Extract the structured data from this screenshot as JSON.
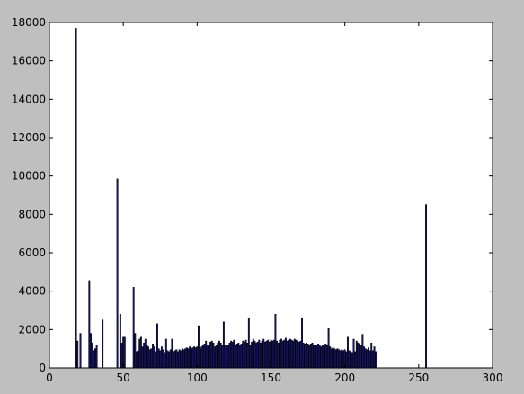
{
  "chart_data": {
    "type": "bar",
    "title": "",
    "xlabel": "",
    "ylabel": "",
    "xlim": [
      0,
      300
    ],
    "ylim": [
      0,
      18000
    ],
    "xticks": [
      0,
      50,
      100,
      150,
      200,
      250,
      300
    ],
    "yticks": [
      0,
      2000,
      4000,
      6000,
      8000,
      10000,
      12000,
      14000,
      16000,
      18000
    ],
    "grid": false,
    "legend": "none",
    "bar_width": 0.8,
    "colors": {
      "bar_fill": "#1a1a8c",
      "bar_edge": "#000000",
      "axes_bg": "#ffffff",
      "figure_bg": "#bfbfbf"
    },
    "bars": [
      [
        18,
        17700
      ],
      [
        19,
        1400
      ],
      [
        21,
        1800
      ],
      [
        27,
        4550
      ],
      [
        28,
        1800
      ],
      [
        29,
        1300
      ],
      [
        30,
        900
      ],
      [
        31,
        1000
      ],
      [
        32,
        1200
      ],
      [
        36,
        2500
      ],
      [
        46,
        9850
      ],
      [
        48,
        2800
      ],
      [
        49,
        1300
      ],
      [
        50,
        1600
      ],
      [
        51,
        1600
      ],
      [
        57,
        4200
      ],
      [
        58,
        1800
      ],
      [
        59,
        850
      ],
      [
        60,
        900
      ],
      [
        61,
        1500
      ],
      [
        62,
        1600
      ],
      [
        63,
        1100
      ],
      [
        64,
        1300
      ],
      [
        65,
        1500
      ],
      [
        66,
        1200
      ],
      [
        67,
        1100
      ],
      [
        68,
        950
      ],
      [
        69,
        1000
      ],
      [
        70,
        1250
      ],
      [
        71,
        1100
      ],
      [
        72,
        850
      ],
      [
        73,
        2300
      ],
      [
        74,
        1000
      ],
      [
        75,
        900
      ],
      [
        76,
        1100
      ],
      [
        77,
        950
      ],
      [
        78,
        800
      ],
      [
        79,
        1500
      ],
      [
        80,
        900
      ],
      [
        81,
        850
      ],
      [
        82,
        950
      ],
      [
        83,
        1500
      ],
      [
        84,
        850
      ],
      [
        85,
        900
      ],
      [
        86,
        950
      ],
      [
        87,
        850
      ],
      [
        88,
        950
      ],
      [
        89,
        900
      ],
      [
        90,
        1000
      ],
      [
        91,
        950
      ],
      [
        92,
        1000
      ],
      [
        93,
        1050
      ],
      [
        94,
        1000
      ],
      [
        95,
        1100
      ],
      [
        96,
        1000
      ],
      [
        97,
        1050
      ],
      [
        98,
        1100
      ],
      [
        99,
        1050
      ],
      [
        100,
        1100
      ],
      [
        101,
        2200
      ],
      [
        102,
        1000
      ],
      [
        103,
        1100
      ],
      [
        104,
        1200
      ],
      [
        105,
        1250
      ],
      [
        106,
        1400
      ],
      [
        107,
        1150
      ],
      [
        108,
        1200
      ],
      [
        109,
        1350
      ],
      [
        110,
        1400
      ],
      [
        111,
        1300
      ],
      [
        112,
        1100
      ],
      [
        113,
        1200
      ],
      [
        114,
        1300
      ],
      [
        115,
        1400
      ],
      [
        116,
        1300
      ],
      [
        117,
        1200
      ],
      [
        118,
        2400
      ],
      [
        119,
        1200
      ],
      [
        120,
        1150
      ],
      [
        121,
        1200
      ],
      [
        122,
        1300
      ],
      [
        123,
        1400
      ],
      [
        124,
        1350
      ],
      [
        125,
        1450
      ],
      [
        126,
        1200
      ],
      [
        127,
        1250
      ],
      [
        128,
        1300
      ],
      [
        129,
        1200
      ],
      [
        130,
        1250
      ],
      [
        131,
        1400
      ],
      [
        132,
        1350
      ],
      [
        133,
        1450
      ],
      [
        134,
        1300
      ],
      [
        135,
        2600
      ],
      [
        136,
        1200
      ],
      [
        137,
        1350
      ],
      [
        138,
        1500
      ],
      [
        139,
        1400
      ],
      [
        140,
        1300
      ],
      [
        141,
        1350
      ],
      [
        142,
        1450
      ],
      [
        143,
        1300
      ],
      [
        144,
        1400
      ],
      [
        145,
        1500
      ],
      [
        146,
        1350
      ],
      [
        147,
        1400
      ],
      [
        148,
        1450
      ],
      [
        149,
        1350
      ],
      [
        150,
        1450
      ],
      [
        151,
        1400
      ],
      [
        152,
        1450
      ],
      [
        153,
        2800
      ],
      [
        154,
        1400
      ],
      [
        155,
        1300
      ],
      [
        156,
        1450
      ],
      [
        157,
        1500
      ],
      [
        158,
        1400
      ],
      [
        159,
        1450
      ],
      [
        160,
        1550
      ],
      [
        161,
        1400
      ],
      [
        162,
        1450
      ],
      [
        163,
        1500
      ],
      [
        164,
        1450
      ],
      [
        165,
        1400
      ],
      [
        166,
        1500
      ],
      [
        167,
        1450
      ],
      [
        168,
        1400
      ],
      [
        169,
        1350
      ],
      [
        170,
        1400
      ],
      [
        171,
        2600
      ],
      [
        172,
        1300
      ],
      [
        173,
        1250
      ],
      [
        174,
        1300
      ],
      [
        175,
        1250
      ],
      [
        176,
        1200
      ],
      [
        177,
        1250
      ],
      [
        178,
        1300
      ],
      [
        179,
        1200
      ],
      [
        180,
        1150
      ],
      [
        181,
        1200
      ],
      [
        182,
        1250
      ],
      [
        183,
        1200
      ],
      [
        184,
        1100
      ],
      [
        185,
        1200
      ],
      [
        186,
        1150
      ],
      [
        187,
        1250
      ],
      [
        188,
        1200
      ],
      [
        189,
        2050
      ],
      [
        190,
        1100
      ],
      [
        191,
        1000
      ],
      [
        192,
        1050
      ],
      [
        193,
        1000
      ],
      [
        194,
        950
      ],
      [
        195,
        1000
      ],
      [
        196,
        950
      ],
      [
        197,
        900
      ],
      [
        198,
        950
      ],
      [
        199,
        900
      ],
      [
        200,
        950
      ],
      [
        201,
        850
      ],
      [
        202,
        1600
      ],
      [
        203,
        900
      ],
      [
        204,
        850
      ],
      [
        205,
        800
      ],
      [
        206,
        1500
      ],
      [
        207,
        850
      ],
      [
        208,
        1400
      ],
      [
        209,
        1300
      ],
      [
        210,
        1250
      ],
      [
        211,
        1200
      ],
      [
        212,
        1750
      ],
      [
        213,
        1100
      ],
      [
        214,
        1000
      ],
      [
        215,
        950
      ],
      [
        216,
        1050
      ],
      [
        217,
        900
      ],
      [
        218,
        1300
      ],
      [
        219,
        900
      ],
      [
        220,
        1100
      ],
      [
        221,
        850
      ],
      [
        255,
        8500
      ]
    ]
  }
}
